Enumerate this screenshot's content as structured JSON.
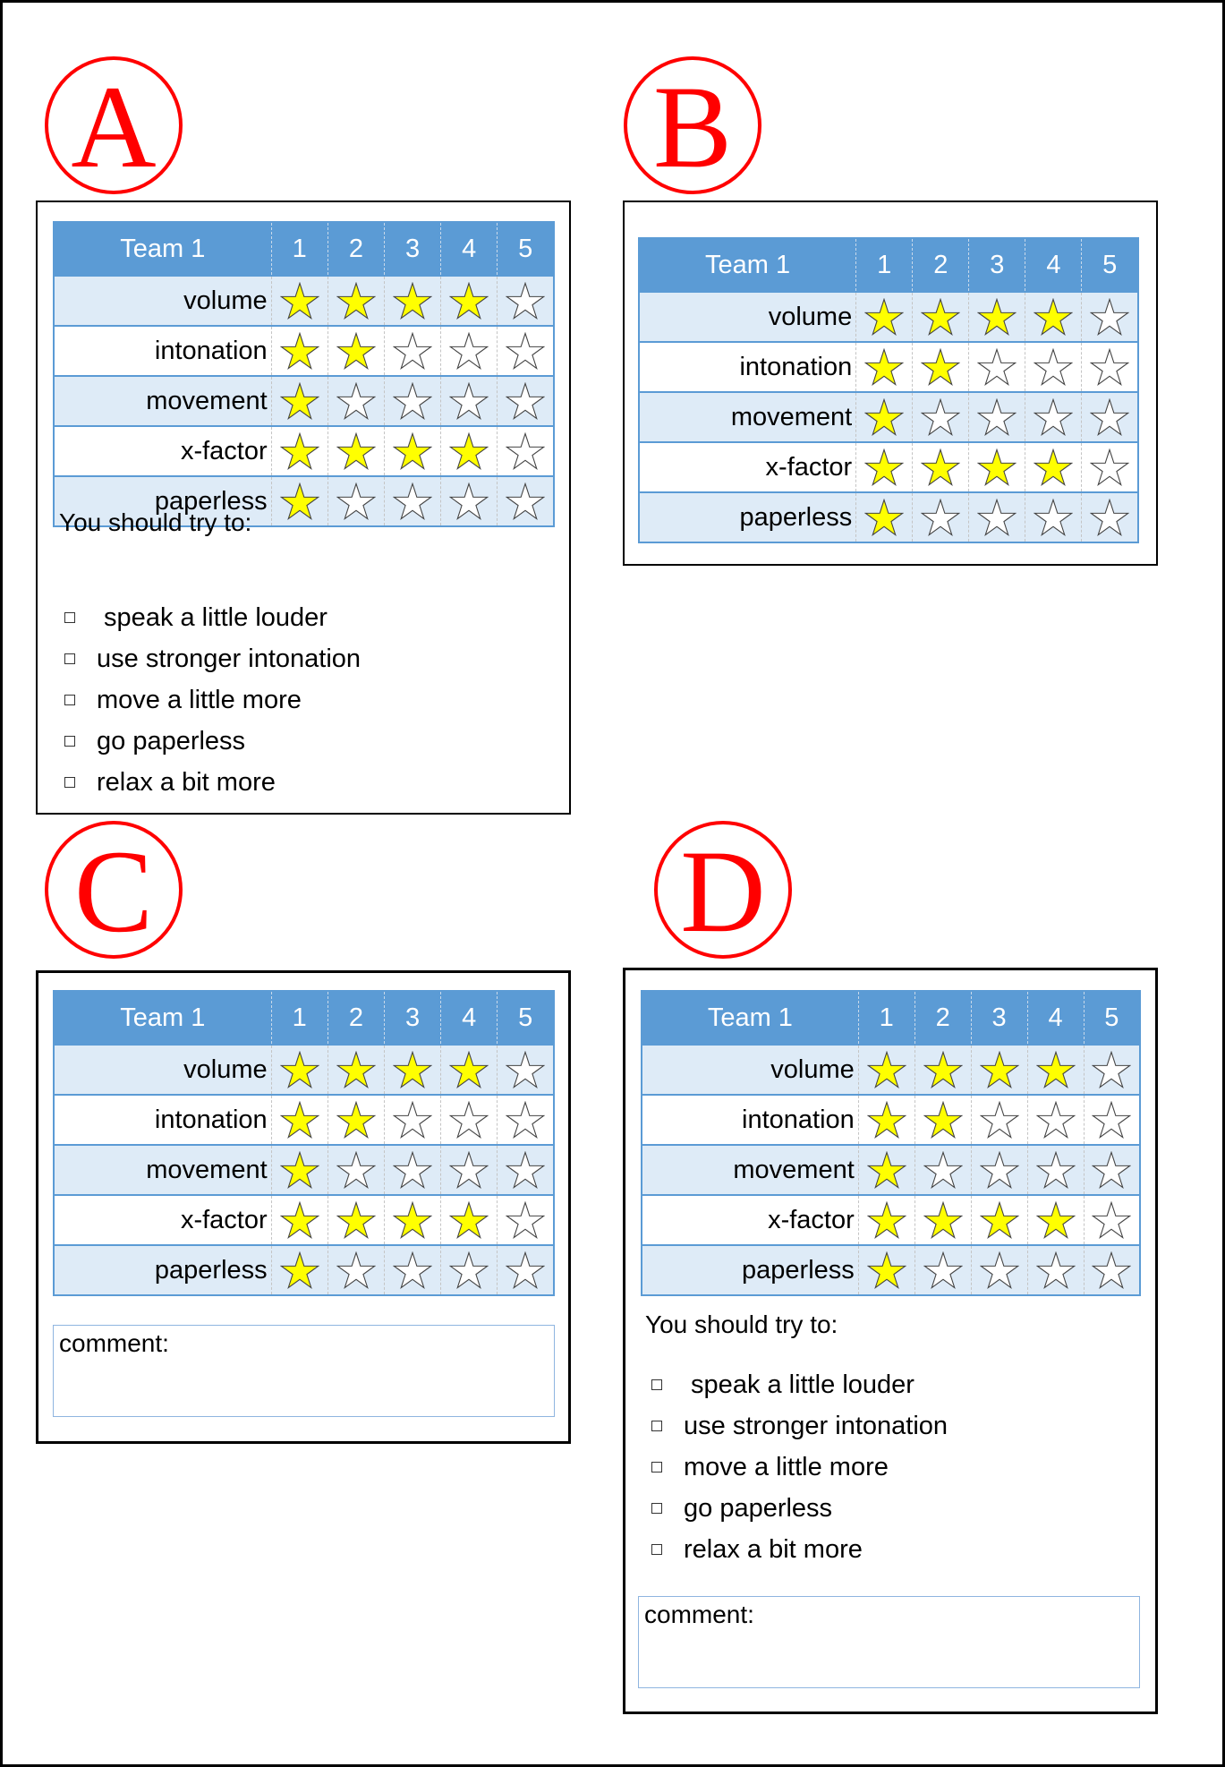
{
  "panels": [
    {
      "letter": "A",
      "team": "Team 1",
      "columns": [
        "1",
        "2",
        "3",
        "4",
        "5"
      ],
      "show_try": true,
      "show_comment": false
    },
    {
      "letter": "B",
      "team": "Team 1",
      "columns": [
        "1",
        "2",
        "3",
        "4",
        "5"
      ],
      "show_try": false,
      "show_comment": false
    },
    {
      "letter": "C",
      "team": "Team 1",
      "columns": [
        "1",
        "2",
        "3",
        "4",
        "5"
      ],
      "show_try": false,
      "show_comment": true
    },
    {
      "letter": "D",
      "team": "Team 1",
      "columns": [
        "1",
        "2",
        "3",
        "4",
        "5"
      ],
      "show_try": true,
      "show_comment": true
    }
  ],
  "criteria": [
    {
      "label": "volume",
      "stars": 4
    },
    {
      "label": "intonation",
      "stars": 2
    },
    {
      "label": "movement",
      "stars": 1
    },
    {
      "label": "x-factor",
      "stars": 4
    },
    {
      "label": "paperless",
      "stars": 1
    }
  ],
  "max_stars": 5,
  "try_title": "You should try to:",
  "try_items": [
    " speak a little louder",
    "use stronger intonation",
    "move a little more",
    "go paperless",
    "relax a bit more"
  ],
  "comment_label": "comment:",
  "colors": {
    "header": "#5b9bd5",
    "alt_row": "#deebf7",
    "star_filled": "#ffff00",
    "letter": "#ff0000"
  }
}
